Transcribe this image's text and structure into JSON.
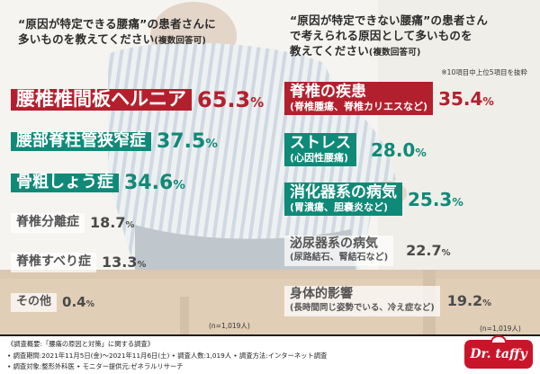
{
  "left_question": {
    "line1": "“原因が特定できる腰痛”の患者さんに",
    "line2": "多いものを教えてください",
    "multi": "(複数回答可)",
    "items": [
      {
        "label": "腰椎椎間板ヘルニア",
        "pct": "65.3",
        "unit": "%",
        "style": "red"
      },
      {
        "label": "腰部脊柱管狭窄症",
        "pct": "37.5",
        "unit": "%",
        "style": "green"
      },
      {
        "label": "骨粗しょう症",
        "pct": "34.6",
        "unit": "%",
        "style": "green"
      },
      {
        "label": "脊椎分離症",
        "pct": "18.7",
        "unit": "%",
        "style": "plain"
      },
      {
        "label": "脊椎すべり症",
        "pct": "13.3",
        "unit": "%",
        "style": "plain"
      },
      {
        "label": "その他",
        "pct": "0.4",
        "unit": "%",
        "style": "plain"
      }
    ],
    "n_note": "(n=1,019人)"
  },
  "right_question": {
    "line1": "“原因が特定できない腰痛”の患者さん",
    "line2": "で考えられる原因として多いものを",
    "line3": "教えてください",
    "multi": "(複数回答可)",
    "top_note": "※10項目中上位5項目を抜粋",
    "items": [
      {
        "label": "脊椎の疾患",
        "sub": "(脊椎腫瘍、脊椎カリエスなど)",
        "pct": "35.4",
        "unit": "%",
        "style": "red"
      },
      {
        "label": "ストレス",
        "sub": "(心因性腰痛)",
        "pct": "28.0",
        "unit": "%",
        "style": "green"
      },
      {
        "label": "消化器系の病気",
        "sub": "(胃潰瘍、胆嚢炎など)",
        "pct": "25.3",
        "unit": "%",
        "style": "green"
      },
      {
        "label": "泌尿器系の病気",
        "sub": "(尿路結石、腎結石など)",
        "pct": "22.7",
        "unit": "%",
        "style": "plain"
      },
      {
        "label": "身体的影響",
        "sub": "(長時間同じ姿勢でいる、冷え症など)",
        "pct": "19.2",
        "unit": "%",
        "style": "plain"
      }
    ],
    "n_note": "(n=1,019人)"
  },
  "footer": {
    "line1": "《調査概要:「腰痛の原因と対策」に関する調査》",
    "line2": "• 調査期間:2021年11月5日(金)〜2021年11月6日(土)   • 調査人数:1,019人   • 調査方法:インターネット調査",
    "line3": "• 調査対象:整形外科医   • モニター提供元:ゼネラルリサーチ"
  },
  "logo": {
    "text": "Dr. taffy"
  },
  "colors": {
    "red": "#b3202d",
    "green": "#0f8a78",
    "logo": "#c9152a"
  }
}
